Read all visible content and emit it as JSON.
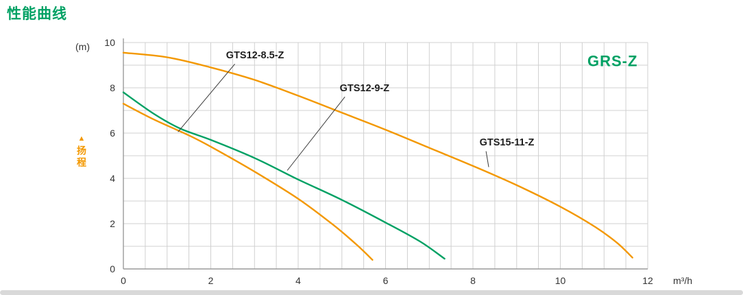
{
  "page": {
    "title": "性能曲线"
  },
  "labels": {
    "head_arrow": "▲",
    "head": "扬程",
    "y_unit": "(m)",
    "x_unit": "m³/h",
    "family": "GRS-Z"
  },
  "colors": {
    "green": "#00a164",
    "orange": "#f39800",
    "grid": "#d0d0d0",
    "axis": "#9a9a9a",
    "tick_text": "#333333",
    "label_text": "#1f1f1f",
    "leader": "#3a3a3a",
    "bottom_bar": "#d9d9d9"
  },
  "chart_data": {
    "type": "line",
    "title": "性能曲线",
    "xlabel": "m³/h",
    "ylabel": "扬程 (m)",
    "xlim": [
      0,
      12
    ],
    "ylim": [
      0,
      10
    ],
    "x_ticks": [
      0,
      2,
      4,
      6,
      8,
      10,
      12
    ],
    "y_ticks": [
      0,
      2,
      4,
      6,
      8,
      10
    ],
    "grid": {
      "x_step": 0.5,
      "y_step": 1
    },
    "legend_position": "none",
    "series": [
      {
        "name": "GTS15-11-Z",
        "color": "#f39800",
        "points": [
          [
            0,
            9.55
          ],
          [
            1,
            9.35
          ],
          [
            2,
            8.9
          ],
          [
            3,
            8.35
          ],
          [
            4,
            7.65
          ],
          [
            5,
            6.9
          ],
          [
            6,
            6.15
          ],
          [
            7,
            5.35
          ],
          [
            8,
            4.55
          ],
          [
            9,
            3.7
          ],
          [
            10,
            2.75
          ],
          [
            10.8,
            1.85
          ],
          [
            11.3,
            1.15
          ],
          [
            11.65,
            0.5
          ]
        ]
      },
      {
        "name": "GTS12-9-Z",
        "color": "#00a164",
        "points": [
          [
            0,
            7.8
          ],
          [
            0.7,
            6.85
          ],
          [
            1.3,
            6.2
          ],
          [
            2,
            5.7
          ],
          [
            3,
            4.9
          ],
          [
            4,
            3.95
          ],
          [
            5,
            3.05
          ],
          [
            6,
            2.05
          ],
          [
            6.8,
            1.2
          ],
          [
            7.35,
            0.45
          ]
        ]
      },
      {
        "name": "GTS12-8.5-Z",
        "color": "#f39800",
        "points": [
          [
            0,
            7.3
          ],
          [
            0.7,
            6.6
          ],
          [
            1.5,
            5.9
          ],
          [
            2,
            5.4
          ],
          [
            3,
            4.3
          ],
          [
            4,
            3.1
          ],
          [
            4.8,
            1.95
          ],
          [
            5.35,
            1.05
          ],
          [
            5.7,
            0.4
          ]
        ]
      }
    ],
    "annotations": [
      {
        "text": "GTS12-8.5-Z",
        "x": 2.35,
        "y": 9.3,
        "leader": [
          [
            2.55,
            9.05
          ],
          [
            1.25,
            6.05
          ]
        ]
      },
      {
        "text": "GTS12-9-Z",
        "x": 4.95,
        "y": 7.85,
        "leader": [
          [
            5.07,
            7.6
          ],
          [
            3.75,
            4.35
          ]
        ]
      },
      {
        "text": "GTS15-11-Z",
        "x": 8.15,
        "y": 5.45,
        "leader": [
          [
            8.3,
            5.2
          ],
          [
            8.36,
            4.5
          ]
        ]
      }
    ],
    "family_label": {
      "text": "GRS-Z",
      "x": 10.62,
      "y": 8.95,
      "color": "#00a164"
    }
  }
}
